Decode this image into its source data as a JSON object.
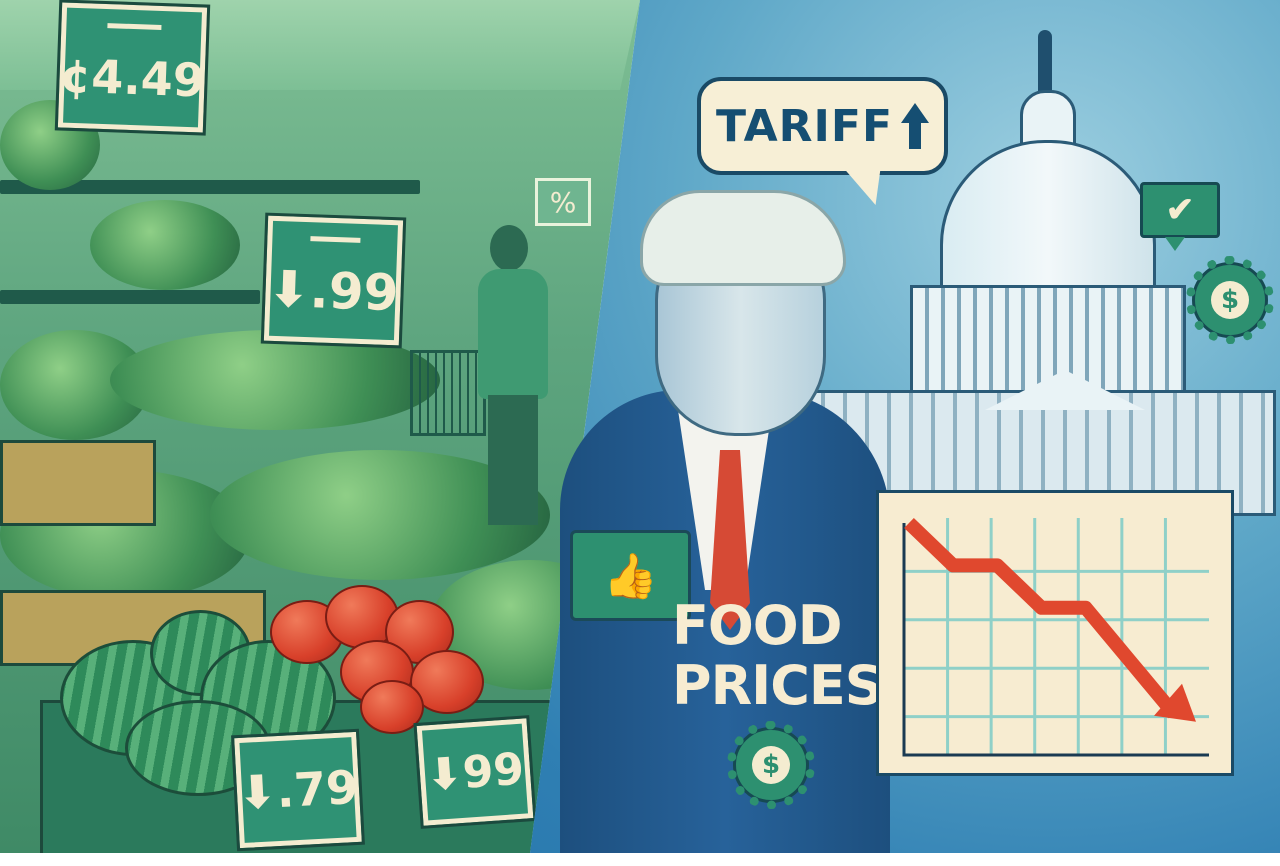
{
  "scene": {
    "left_panel": {
      "description": "grocery store produce aisle with shopper",
      "price_tags": [
        {
          "id": "top-left",
          "label": "¢4.49",
          "icon": "cent-sign"
        },
        {
          "id": "shelf-middle",
          "label": ".99",
          "icon": "arrow-down-icon"
        },
        {
          "id": "bottom-left",
          "label": ".79",
          "icon": "arrow-down-icon"
        },
        {
          "id": "bottom-right",
          "label": "99",
          "icon": "arrow-down-icon"
        }
      ],
      "percent_sign": "%"
    },
    "right_panel": {
      "speech_bubble": {
        "text": "TARIFF",
        "icon": "arrow-up-icon"
      },
      "headline_line1": "FOOD",
      "headline_line2": "PRICES",
      "thumbs_up": "👍",
      "check_bubble": "✔",
      "gear_symbol": "$"
    }
  },
  "colors": {
    "left_green": "#3f8a66",
    "right_blue": "#1d6aa3",
    "tag_green": "#2f9274",
    "cream": "#f7ecd1",
    "arrow_red": "#e0482e",
    "grid_teal": "#8fd0c8"
  },
  "chart_data": {
    "type": "line",
    "title": "",
    "xlabel": "",
    "ylabel": "",
    "x": [
      0,
      1,
      2,
      3,
      4,
      5,
      6
    ],
    "values": [
      100,
      80,
      80,
      60,
      60,
      35,
      10
    ],
    "annotations": [
      "downward trend arrow"
    ],
    "grid": true,
    "ylim": [
      0,
      100
    ]
  }
}
